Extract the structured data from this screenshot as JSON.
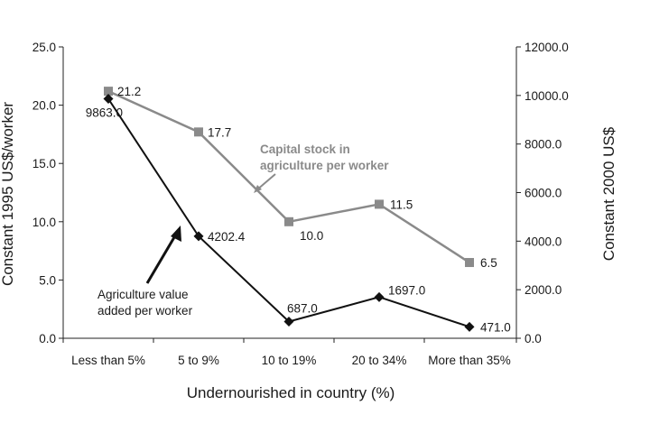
{
  "chart_data": {
    "type": "line",
    "categories": [
      "Less than 5%",
      "5 to 9%",
      "10 to 19%",
      "20 to 34%",
      "More than 35%"
    ],
    "xlabel": "Undernourished in country (%)",
    "y_left": {
      "label": "Constant 1995 US$/worker",
      "range": [
        0,
        25
      ],
      "ticks": [
        "0.0",
        "5.0",
        "10.0",
        "15.0",
        "20.0",
        "25.0"
      ]
    },
    "y_right": {
      "label": "Constant 2000 US$",
      "range": [
        0,
        12000
      ],
      "ticks": [
        "0.0",
        "2000.0",
        "4000.0",
        "6000.0",
        "8000.0",
        "10000.0",
        "12000.0"
      ]
    },
    "grid": false,
    "series": [
      {
        "name": "Capital stock in agriculture per worker",
        "name_lines": [
          "Capital stock in",
          "agriculture per worker"
        ],
        "axis": "left",
        "marker": "square",
        "color": "#8a8a8a",
        "values": [
          21.2,
          17.7,
          10.0,
          11.5,
          6.5
        ],
        "labels": [
          "21.2",
          "17.7",
          "10.0",
          "11.5",
          "6.5"
        ]
      },
      {
        "name": "Agriculture value added per worker",
        "name_lines": [
          "Agriculture value",
          "added per worker"
        ],
        "axis": "right",
        "marker": "diamond",
        "color": "#111111",
        "values": [
          9863.0,
          4202.4,
          687.0,
          1697.0,
          471.0
        ],
        "labels": [
          "9863.0",
          "4202.4",
          "687.0",
          "1697.0",
          "471.0"
        ]
      }
    ]
  }
}
